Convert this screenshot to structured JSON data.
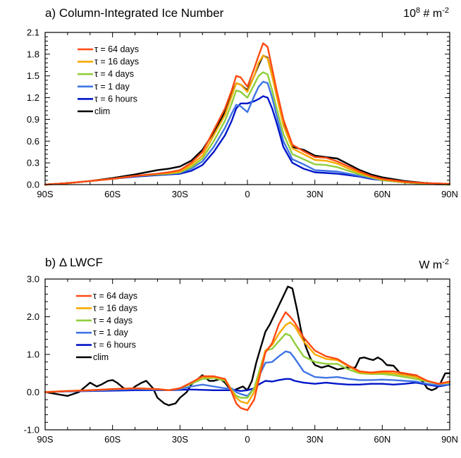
{
  "colors": {
    "tau_64_days": "#ff4a12",
    "tau_16_days": "#f7a800",
    "tau_4_days": "#8fce3a",
    "tau_1_day": "#3f74e4",
    "tau_6_hours": "#0016c8",
    "clim": "#000000"
  },
  "chart_data": [
    {
      "type": "line",
      "title": "a) Column-Integrated Ice Number",
      "units_base": "10",
      "units_exp": "8",
      "units_rest": " # m",
      "units_rest_exp": "-2",
      "xlabel": "",
      "ylabel": "",
      "xlim": [
        -90,
        90
      ],
      "ylim": [
        0,
        2.1
      ],
      "x_ticks": [
        -90,
        -60,
        -30,
        0,
        30,
        60,
        90
      ],
      "x_tick_labels": [
        "90S",
        "60S",
        "30S",
        "0",
        "30N",
        "60N",
        "90N"
      ],
      "y_ticks": [
        0,
        0.3,
        0.6,
        0.9,
        1.2,
        1.5,
        1.8,
        2.1
      ],
      "y_tick_labels": [
        "0.0",
        "0.3",
        "0.6",
        "0.9",
        "1.2",
        "1.5",
        "1.8",
        "2.1"
      ],
      "legend_position": "top-left",
      "series": [
        {
          "name": "τ = 64 days",
          "color_key": "tau_64_days",
          "x": [
            -90,
            -80,
            -70,
            -60,
            -50,
            -40,
            -35,
            -30,
            -25,
            -20,
            -15,
            -10,
            -7,
            -5,
            -3,
            0,
            3,
            5,
            7,
            9,
            11,
            13,
            16,
            20,
            25,
            30,
            35,
            40,
            45,
            50,
            55,
            60,
            70,
            80,
            90
          ],
          "y": [
            0.0,
            0.02,
            0.05,
            0.08,
            0.12,
            0.15,
            0.17,
            0.2,
            0.3,
            0.45,
            0.75,
            1.05,
            1.3,
            1.5,
            1.48,
            1.35,
            1.6,
            1.78,
            1.95,
            1.9,
            1.6,
            1.3,
            0.9,
            0.55,
            0.46,
            0.38,
            0.37,
            0.32,
            0.25,
            0.18,
            0.12,
            0.08,
            0.04,
            0.02,
            0.01
          ]
        },
        {
          "name": "τ = 16 days",
          "color_key": "tau_16_days",
          "x": [
            -90,
            -80,
            -70,
            -60,
            -50,
            -40,
            -35,
            -30,
            -25,
            -20,
            -15,
            -10,
            -7,
            -5,
            -3,
            0,
            3,
            5,
            7,
            9,
            11,
            13,
            16,
            20,
            25,
            30,
            35,
            40,
            45,
            50,
            55,
            60,
            70,
            80,
            90
          ],
          "y": [
            0.0,
            0.02,
            0.05,
            0.08,
            0.12,
            0.15,
            0.16,
            0.18,
            0.27,
            0.4,
            0.68,
            0.96,
            1.22,
            1.4,
            1.38,
            1.28,
            1.5,
            1.68,
            1.78,
            1.74,
            1.5,
            1.22,
            0.82,
            0.5,
            0.42,
            0.34,
            0.33,
            0.29,
            0.22,
            0.16,
            0.11,
            0.07,
            0.03,
            0.02,
            0.01
          ]
        },
        {
          "name": "τ = 4 days",
          "color_key": "tau_4_days",
          "x": [
            -90,
            -80,
            -70,
            -60,
            -50,
            -40,
            -35,
            -30,
            -25,
            -20,
            -15,
            -10,
            -7,
            -5,
            -3,
            0,
            3,
            5,
            7,
            9,
            11,
            13,
            16,
            20,
            25,
            30,
            35,
            40,
            45,
            50,
            55,
            60,
            70,
            80,
            90
          ],
          "y": [
            0.0,
            0.02,
            0.05,
            0.08,
            0.12,
            0.14,
            0.15,
            0.17,
            0.24,
            0.36,
            0.6,
            0.88,
            1.12,
            1.3,
            1.28,
            1.2,
            1.38,
            1.5,
            1.55,
            1.52,
            1.3,
            1.05,
            0.7,
            0.42,
            0.35,
            0.28,
            0.27,
            0.24,
            0.19,
            0.14,
            0.1,
            0.06,
            0.03,
            0.01,
            0.0
          ]
        },
        {
          "name": "τ = 1 day",
          "color_key": "tau_1_day",
          "x": [
            -90,
            -80,
            -70,
            -60,
            -50,
            -40,
            -35,
            -30,
            -25,
            -20,
            -15,
            -10,
            -7,
            -5,
            -3,
            0,
            3,
            5,
            7,
            9,
            11,
            13,
            16,
            20,
            25,
            30,
            35,
            40,
            45,
            50,
            55,
            60,
            70,
            80,
            90
          ],
          "y": [
            0.0,
            0.02,
            0.05,
            0.08,
            0.12,
            0.14,
            0.15,
            0.16,
            0.22,
            0.32,
            0.52,
            0.78,
            0.98,
            1.1,
            1.08,
            1.0,
            1.22,
            1.35,
            1.42,
            1.4,
            1.2,
            0.95,
            0.6,
            0.35,
            0.28,
            0.2,
            0.19,
            0.18,
            0.15,
            0.12,
            0.09,
            0.06,
            0.03,
            0.01,
            0.0
          ]
        },
        {
          "name": "τ = 6 hours",
          "color_key": "tau_6_hours",
          "x": [
            -90,
            -80,
            -70,
            -60,
            -50,
            -40,
            -35,
            -30,
            -25,
            -20,
            -15,
            -10,
            -7,
            -5,
            -3,
            0,
            3,
            5,
            7,
            9,
            11,
            13,
            16,
            20,
            25,
            30,
            35,
            40,
            45,
            50,
            55,
            60,
            70,
            80,
            90
          ],
          "y": [
            0.0,
            0.02,
            0.05,
            0.08,
            0.11,
            0.13,
            0.14,
            0.15,
            0.19,
            0.27,
            0.45,
            0.68,
            0.88,
            1.05,
            1.12,
            1.12,
            1.15,
            1.18,
            1.22,
            1.2,
            1.05,
            0.85,
            0.52,
            0.3,
            0.22,
            0.17,
            0.16,
            0.15,
            0.13,
            0.11,
            0.08,
            0.06,
            0.03,
            0.01,
            0.0
          ]
        },
        {
          "name": "clim",
          "color_key": "clim",
          "x": [
            -90,
            -80,
            -70,
            -60,
            -50,
            -40,
            -35,
            -30,
            -25,
            -20,
            -15,
            -10,
            -7,
            -5,
            -3,
            0,
            3,
            5,
            7,
            9,
            11,
            13,
            16,
            20,
            25,
            30,
            35,
            40,
            45,
            50,
            55,
            60,
            70,
            80,
            90
          ],
          "y": [
            0.0,
            0.02,
            0.05,
            0.09,
            0.14,
            0.2,
            0.22,
            0.25,
            0.33,
            0.48,
            0.72,
            1.0,
            1.25,
            1.4,
            1.38,
            1.3,
            1.5,
            1.65,
            1.78,
            1.75,
            1.5,
            1.25,
            0.85,
            0.52,
            0.48,
            0.4,
            0.38,
            0.36,
            0.28,
            0.2,
            0.14,
            0.1,
            0.05,
            0.02,
            0.01
          ]
        }
      ]
    },
    {
      "type": "line",
      "title": "b) Δ LWCF",
      "units_base": "W m",
      "units_exp": "-2",
      "units_rest": "",
      "units_rest_exp": "",
      "xlabel": "",
      "ylabel": "",
      "xlim": [
        -90,
        90
      ],
      "ylim": [
        -1.0,
        3.0
      ],
      "x_ticks": [
        -90,
        -60,
        -30,
        0,
        30,
        60,
        90
      ],
      "x_tick_labels": [
        "90S",
        "60S",
        "30S",
        "0",
        "30N",
        "60N",
        "90N"
      ],
      "y_ticks": [
        -1.0,
        0.0,
        1.0,
        2.0,
        3.0
      ],
      "y_tick_labels": [
        "-1.0",
        "0.0",
        "1.0",
        "2.0",
        "3.0"
      ],
      "legend_position": "top-left",
      "series": [
        {
          "name": "τ = 64 days",
          "color_key": "tau_64_days",
          "x": [
            -90,
            -80,
            -70,
            -60,
            -50,
            -40,
            -35,
            -30,
            -25,
            -20,
            -15,
            -10,
            -7,
            -5,
            -3,
            0,
            3,
            5,
            8,
            11,
            14,
            17,
            19,
            21,
            25,
            30,
            35,
            40,
            45,
            50,
            55,
            60,
            65,
            70,
            75,
            80,
            85,
            90
          ],
          "y": [
            0.0,
            0.03,
            0.05,
            0.08,
            0.1,
            0.08,
            0.05,
            0.1,
            0.25,
            0.42,
            0.42,
            0.35,
            0.0,
            -0.3,
            -0.42,
            -0.48,
            -0.2,
            0.3,
            1.05,
            1.3,
            1.8,
            2.12,
            2.0,
            1.85,
            1.45,
            1.1,
            0.95,
            0.88,
            0.7,
            0.55,
            0.52,
            0.55,
            0.55,
            0.5,
            0.45,
            0.3,
            0.22,
            0.28
          ]
        },
        {
          "name": "τ = 16 days",
          "color_key": "tau_16_days",
          "x": [
            -90,
            -80,
            -70,
            -60,
            -50,
            -40,
            -35,
            -30,
            -25,
            -20,
            -15,
            -10,
            -7,
            -5,
            -3,
            0,
            3,
            5,
            8,
            11,
            14,
            17,
            19,
            21,
            25,
            30,
            35,
            40,
            45,
            50,
            55,
            60,
            65,
            70,
            75,
            80,
            85,
            90
          ],
          "y": [
            0.0,
            0.03,
            0.05,
            0.08,
            0.1,
            0.08,
            0.05,
            0.1,
            0.25,
            0.4,
            0.4,
            0.35,
            0.05,
            -0.15,
            -0.25,
            -0.3,
            0.0,
            0.4,
            1.1,
            1.25,
            1.55,
            1.78,
            1.85,
            1.75,
            1.35,
            1.0,
            0.88,
            0.85,
            0.68,
            0.52,
            0.5,
            0.52,
            0.5,
            0.45,
            0.4,
            0.3,
            0.22,
            0.26
          ]
        },
        {
          "name": "τ = 4 days",
          "color_key": "tau_4_days",
          "x": [
            -90,
            -80,
            -70,
            -60,
            -50,
            -40,
            -35,
            -30,
            -25,
            -20,
            -15,
            -10,
            -7,
            -5,
            -3,
            0,
            3,
            5,
            8,
            11,
            14,
            17,
            19,
            21,
            25,
            30,
            35,
            40,
            45,
            50,
            55,
            60,
            65,
            70,
            75,
            80,
            85,
            90
          ],
          "y": [
            0.0,
            0.03,
            0.05,
            0.08,
            0.1,
            0.08,
            0.05,
            0.1,
            0.22,
            0.35,
            0.38,
            0.3,
            0.05,
            -0.1,
            -0.15,
            -0.15,
            0.1,
            0.5,
            1.1,
            1.15,
            1.35,
            1.55,
            1.5,
            1.3,
            0.95,
            0.8,
            0.75,
            0.75,
            0.6,
            0.5,
            0.48,
            0.48,
            0.45,
            0.4,
            0.35,
            0.28,
            0.22,
            0.25
          ]
        },
        {
          "name": "τ = 1 day",
          "color_key": "tau_1_day",
          "x": [
            -90,
            -80,
            -70,
            -60,
            -50,
            -40,
            -35,
            -30,
            -25,
            -20,
            -15,
            -10,
            -7,
            -5,
            -3,
            0,
            3,
            5,
            8,
            11,
            14,
            17,
            19,
            21,
            25,
            30,
            35,
            40,
            45,
            50,
            55,
            60,
            65,
            70,
            75,
            80,
            85,
            90
          ],
          "y": [
            0.0,
            0.03,
            0.04,
            0.06,
            0.08,
            0.06,
            0.05,
            0.08,
            0.15,
            0.2,
            0.15,
            0.1,
            0.1,
            0.0,
            -0.05,
            -0.1,
            0.1,
            0.4,
            0.78,
            0.8,
            0.95,
            1.08,
            1.05,
            0.9,
            0.55,
            0.4,
            0.38,
            0.4,
            0.35,
            0.32,
            0.32,
            0.33,
            0.32,
            0.3,
            0.28,
            0.22,
            0.18,
            0.2
          ]
        },
        {
          "name": "τ = 6 hours",
          "color_key": "tau_6_hours",
          "x": [
            -90,
            -80,
            -70,
            -60,
            -50,
            -40,
            -35,
            -30,
            -25,
            -20,
            -15,
            -10,
            -7,
            -5,
            -3,
            0,
            3,
            5,
            8,
            11,
            14,
            17,
            19,
            21,
            25,
            30,
            35,
            40,
            45,
            50,
            55,
            60,
            65,
            70,
            75,
            80,
            85,
            90
          ],
          "y": [
            0.0,
            0.02,
            0.03,
            0.04,
            0.05,
            0.05,
            0.05,
            0.06,
            0.07,
            0.06,
            0.05,
            0.05,
            0.05,
            0.05,
            0.03,
            0.05,
            0.1,
            0.2,
            0.3,
            0.28,
            0.32,
            0.35,
            0.35,
            0.3,
            0.25,
            0.22,
            0.25,
            0.22,
            0.2,
            0.2,
            0.22,
            0.22,
            0.2,
            0.22,
            0.25,
            0.2,
            0.15,
            0.2
          ]
        },
        {
          "name": "clim",
          "color_key": "clim",
          "x": [
            -90,
            -85,
            -80,
            -75,
            -72,
            -70,
            -67,
            -65,
            -62,
            -60,
            -58,
            -55,
            -52,
            -50,
            -47,
            -45,
            -42,
            -40,
            -37,
            -35,
            -32,
            -30,
            -27,
            -25,
            -22,
            -20,
            -17,
            -15,
            -12,
            -10,
            -8,
            -6,
            -4,
            -2,
            0,
            2,
            4,
            6,
            8,
            10,
            12,
            14,
            16,
            18,
            20,
            22,
            24,
            26,
            28,
            30,
            33,
            36,
            40,
            44,
            48,
            50,
            52,
            54,
            56,
            58,
            60,
            62,
            65,
            68,
            70,
            72,
            75,
            78,
            80,
            82,
            84,
            86,
            88,
            90
          ],
          "y": [
            0.0,
            -0.05,
            -0.1,
            0.0,
            0.15,
            0.25,
            0.15,
            0.2,
            0.3,
            0.32,
            0.25,
            0.1,
            0.05,
            0.15,
            0.25,
            0.3,
            0.1,
            -0.15,
            -0.3,
            -0.35,
            -0.3,
            -0.15,
            0.0,
            0.2,
            0.35,
            0.45,
            0.3,
            0.3,
            0.35,
            0.25,
            0.1,
            0.05,
            0.1,
            0.15,
            0.05,
            0.3,
            0.8,
            1.2,
            1.6,
            1.8,
            2.05,
            2.3,
            2.55,
            2.8,
            2.75,
            2.2,
            1.6,
            1.2,
            0.9,
            0.72,
            0.65,
            0.7,
            0.6,
            0.65,
            0.65,
            0.9,
            0.92,
            0.88,
            0.85,
            0.92,
            0.85,
            0.72,
            0.7,
            0.5,
            0.5,
            0.45,
            0.45,
            0.28,
            0.1,
            0.05,
            0.1,
            0.25,
            0.5,
            0.5
          ]
        }
      ]
    }
  ]
}
